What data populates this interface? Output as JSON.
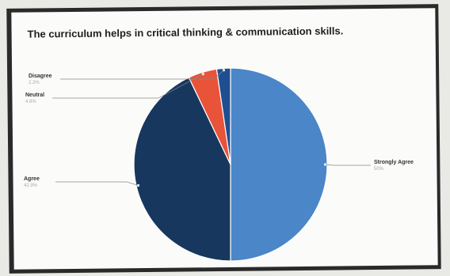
{
  "chart_data": {
    "type": "pie",
    "title": "The curriculum helps in critical thinking & communication skills.",
    "slices": [
      {
        "label": "Strongly Agree",
        "percent": "50%",
        "value": 50,
        "color": "#4a86c8"
      },
      {
        "label": "Agree",
        "percent": "42.9%",
        "value": 42.9,
        "color": "#17375e"
      },
      {
        "label": "Neutral",
        "percent": "4.8%",
        "value": 4.8,
        "color": "#e8533a"
      },
      {
        "label": "Disagree",
        "percent": "2.3%",
        "value": 2.3,
        "color": "#1f4e91"
      }
    ]
  }
}
